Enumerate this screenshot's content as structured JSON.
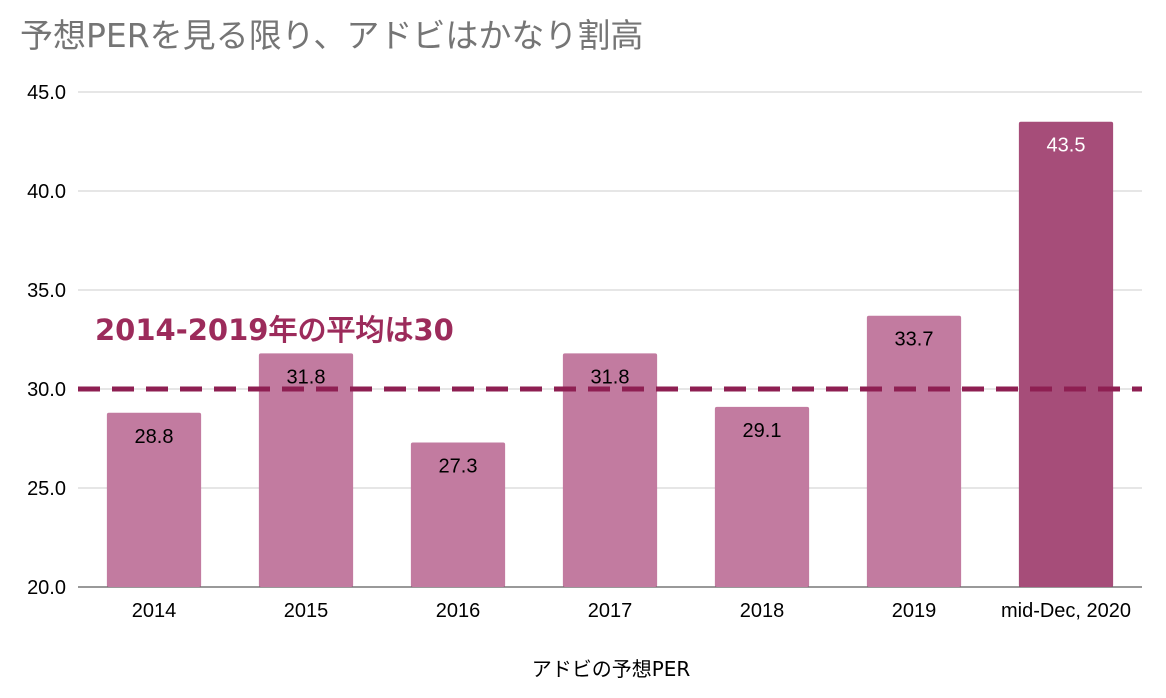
{
  "chart_data": {
    "type": "bar",
    "title": "予想PERを見る限り、アドビはかなり割高",
    "xlabel": "アドビの予想PER",
    "ylabel": "",
    "categories": [
      "2014",
      "2015",
      "2016",
      "2017",
      "2018",
      "2019",
      "mid-Dec, 2020"
    ],
    "values": [
      28.8,
      31.8,
      27.3,
      31.8,
      29.1,
      33.7,
      43.5
    ],
    "value_labels": [
      "28.8",
      "31.8",
      "27.3",
      "31.8",
      "29.1",
      "33.7",
      "43.5"
    ],
    "ylim": [
      20,
      45
    ],
    "yticks": [
      20,
      25,
      30,
      35,
      40,
      45
    ],
    "ytick_labels": [
      "20.0",
      "25.0",
      "30.0",
      "35.0",
      "40.0",
      "45.0"
    ],
    "grid": true,
    "highlight_index": 6,
    "reference_line": {
      "value": 30,
      "style": "dashed",
      "label": "2014-2019年の平均は30"
    },
    "colors": {
      "bar": "#c27ba0",
      "bar_highlight": "#a64d79",
      "reference_line": "#8e1f52",
      "annotation": "#9c2b5b",
      "grid": "#cccccc",
      "title": "#757575"
    }
  }
}
